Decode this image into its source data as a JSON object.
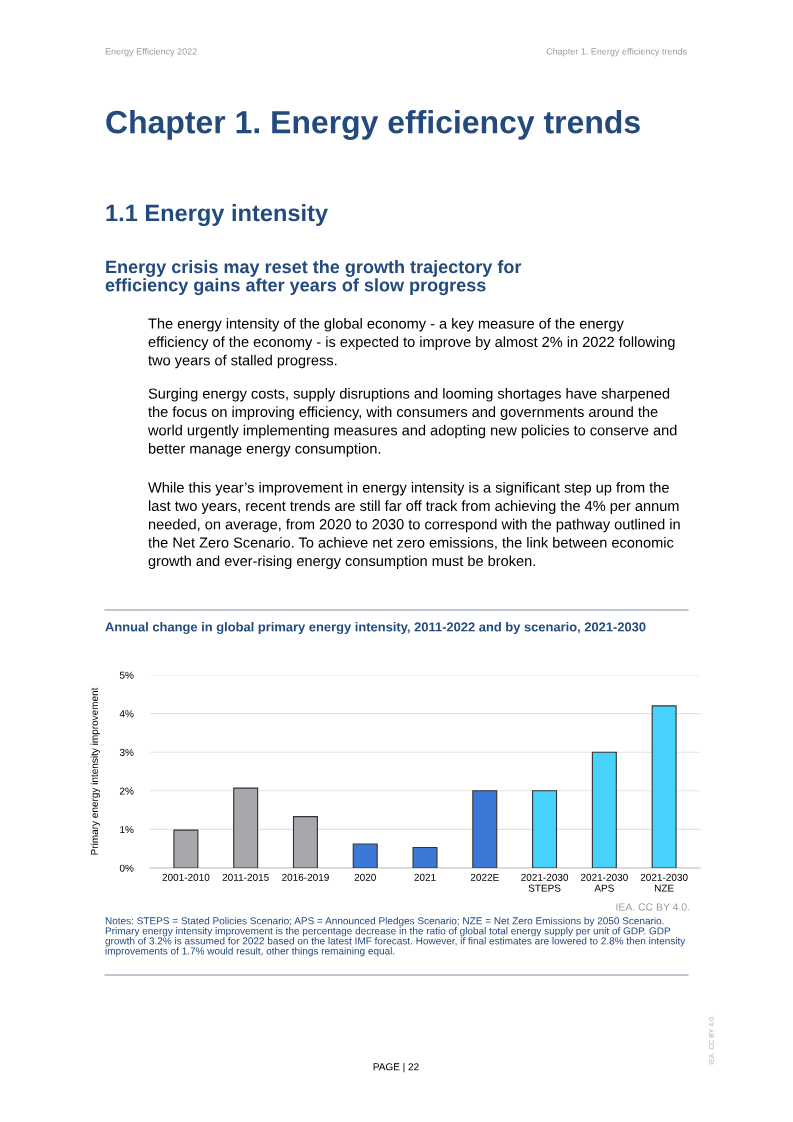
{
  "chart_data": {
    "type": "bar",
    "title": "Annual change in global primary energy intensity, 2011-2022 and by scenario, 2021-2030",
    "ylabel": "Primary energy intensity improvement",
    "categories": [
      "2001-2010",
      "2011-2015",
      "2016-2019",
      "2020",
      "2021",
      "2022E",
      "2021-2030\nSTEPS",
      "2021-2030\nAPS",
      "2021-2030\nNZE"
    ],
    "values": [
      0.98,
      2.07,
      1.33,
      0.62,
      0.53,
      2.0,
      2.0,
      3.0,
      4.2
    ],
    "colors": [
      "#a6a8ab",
      "#a6a8ab",
      "#a6a8ab",
      "#3c78d8",
      "#3c78d8",
      "#3c78d8",
      "#46d2fa",
      "#46d2fa",
      "#46d2fa"
    ],
    "ylim": [
      0,
      5
    ],
    "yticks": [
      {
        "value": 0,
        "label": "0%"
      },
      {
        "value": 1,
        "label": "1%"
      },
      {
        "value": 2,
        "label": "2%"
      },
      {
        "value": 3,
        "label": "3%"
      },
      {
        "value": 4,
        "label": "4%"
      },
      {
        "value": 5,
        "label": "5%"
      }
    ],
    "grid": "y",
    "annotations": [
      "Energy Efficiency 2022",
      "Chapter 1. Energy efficiency trends",
      "Chapter 1. Energy efficiency trends",
      "1.1 Energy intensity",
      "Energy crisis may reset the growth trajectory for efficiency gains after years of slow progress",
      "The energy intensity of the global economy - a key measure of the energy efficiency of the economy - is expected to improve by almost 2% in 2022 following two years of stalled progress.",
      "Surging energy costs, supply disruptions and looming shortages have sharpened the focus on improving efficiency, with consumers and governments around the world urgently implementing measures and adopting new policies to conserve and better manage energy consumption.",
      "While this year’s improvement in energy intensity is a significant step up from the last two years, recent trends are still far off track from achieving the 4% per annum needed, on average, from 2020 to 2030 to correspond with the pathway outlined in the Net Zero Scenario. To achieve net zero emissions, the link between economic growth and ever-rising energy consumption must be broken.",
      "IEA. CC BY 4.0.",
      "Notes: STEPS = Stated Policies Scenario; APS = Announced Pledges Scenario; NZE = Net Zero Emissions by 2050 Scenario. Primary energy intensity improvement is the percentage decrease in the ratio of global total energy supply per unit of GDP. GDP growth of 3.2% is assumed for 2022 based on the latest IMF forecast. However, if final estimates are lowered to 2.8% then intensity improvements of 1.7% would result, other things remaining equal.",
      "PAGE | 22",
      "IEA. CC BY 4.0."
    ]
  }
}
